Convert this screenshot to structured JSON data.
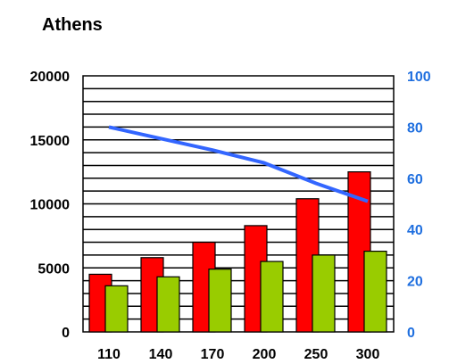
{
  "chart_data": {
    "type": "bar",
    "title": "Athens",
    "categories": [
      "110",
      "140",
      "170",
      "200",
      "250",
      "300"
    ],
    "series": [
      {
        "values": [
          4500,
          5800,
          7000,
          8300,
          10400,
          12500
        ],
        "color": "#ff0000",
        "axis": "left"
      },
      {
        "values": [
          3600,
          4300,
          4900,
          5500,
          6000,
          6300
        ],
        "color": "#99cc00",
        "axis": "left"
      },
      {
        "type": "line",
        "values": [
          80,
          75.5,
          71,
          66,
          58,
          51
        ],
        "color": "#3366ff",
        "axis": "right"
      }
    ],
    "y_left": {
      "ylim": [
        0,
        20000
      ],
      "ticks": [
        "0",
        "5000",
        "10000",
        "15000",
        "20000"
      ]
    },
    "y_right": {
      "ylim": [
        0,
        100
      ],
      "ticks": [
        "0",
        "20",
        "40",
        "60",
        "80",
        "100"
      ],
      "color": "#1f6fdf"
    },
    "grid": "horizontal lines every 1000",
    "legend": "none"
  }
}
